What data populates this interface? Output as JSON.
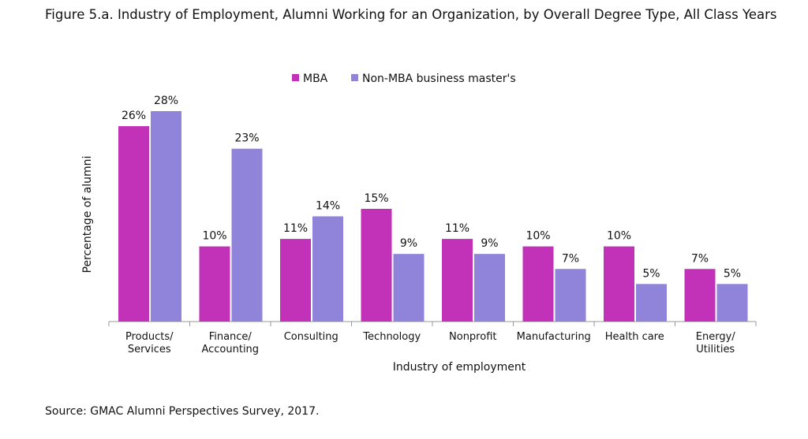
{
  "chart_data": {
    "type": "bar",
    "title": "Figure 5.a. Industry of Employment, Alumni Working for an Organization, by Overall Degree Type, All Class Years",
    "x_label": "Industry of employment",
    "y_label": "Percentage of alumni",
    "source": "Source: GMAC Alumni Perspectives Survey, 2017.",
    "categories": [
      "Products/\nServices",
      "Finance/\nAccounting",
      "Consulting",
      "Technology",
      "Nonprofit",
      "Manufacturing",
      "Health care",
      "Energy/\nUtilities"
    ],
    "series": [
      {
        "name": "MBA",
        "color": "#c232b9",
        "values": [
          26,
          10,
          11,
          15,
          11,
          10,
          10,
          7
        ],
        "value_labels": [
          "26%",
          "10%",
          "11%",
          "15%",
          "11%",
          "10%",
          "10%",
          "7%"
        ]
      },
      {
        "name": "Non-MBA business master's",
        "color": "#8f84da",
        "values": [
          28,
          23,
          14,
          9,
          9,
          7,
          5,
          5
        ],
        "value_labels": [
          "28%",
          "23%",
          "14%",
          "9%",
          "9%",
          "7%",
          "5%",
          "5%"
        ]
      }
    ],
    "legend": "top"
  }
}
